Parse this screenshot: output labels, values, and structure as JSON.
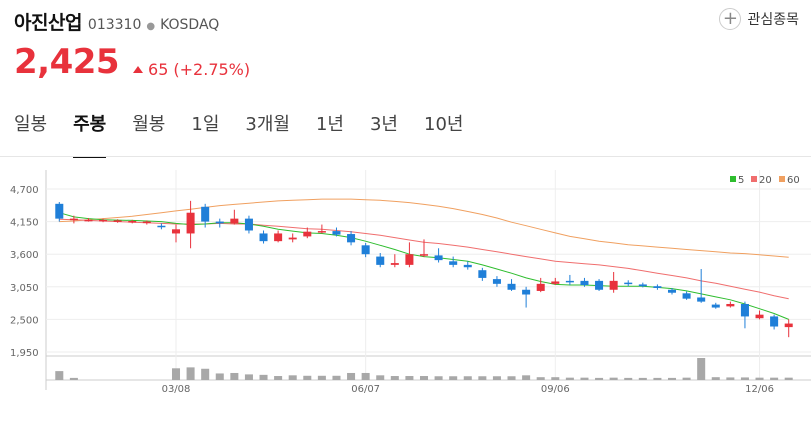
{
  "stock": {
    "name": "아진산업",
    "code": "013310",
    "market": "KOSDAQ",
    "price": "2,425",
    "change_value": "65",
    "change_pct": "(+2.75%)"
  },
  "favorite": {
    "label": "관심종목",
    "icon": "plus-icon"
  },
  "tabs": [
    "일봉",
    "주봉",
    "월봉",
    "1일",
    "3개월",
    "1년",
    "3년",
    "10년"
  ],
  "active_tab": 1,
  "colors": {
    "up": "#e8323c",
    "down": "#1f7fd8",
    "ma5": "#2ebd2e",
    "ma20": "#f06e6e",
    "ma60": "#f0a060"
  },
  "chart_data": {
    "type": "candlestick",
    "y_ticks": [
      "4,700",
      "4,150",
      "3,600",
      "3,050",
      "2,500",
      "1,950"
    ],
    "ylim": [
      1950,
      4700
    ],
    "x_tick_labels": [
      {
        "index": 8,
        "label": "03/08"
      },
      {
        "index": 21,
        "label": "06/07"
      },
      {
        "index": 34,
        "label": "09/06"
      },
      {
        "index": 48,
        "label": "12/06"
      }
    ],
    "legend": [
      "5",
      "20",
      "60"
    ],
    "candles": [
      [
        4450,
        4200,
        4480,
        4150
      ],
      [
        4180,
        4200,
        4250,
        4120
      ],
      [
        4180,
        4180,
        4210,
        4150
      ],
      [
        4170,
        4180,
        4200,
        4140
      ],
      [
        4160,
        4170,
        4190,
        4130
      ],
      [
        4150,
        4160,
        4180,
        4120
      ],
      [
        4140,
        4150,
        4170,
        4100
      ],
      [
        4080,
        4060,
        4120,
        4020
      ],
      [
        3950,
        4020,
        4100,
        3800
      ],
      [
        3950,
        4300,
        4500,
        3700
      ],
      [
        4400,
        4150,
        4450,
        4050
      ],
      [
        4150,
        4120,
        4200,
        4050
      ],
      [
        4120,
        4200,
        4350,
        4100
      ],
      [
        4200,
        4000,
        4250,
        3950
      ],
      [
        3950,
        3820,
        4000,
        3780
      ],
      [
        3820,
        3950,
        4000,
        3800
      ],
      [
        3850,
        3880,
        3950,
        3800
      ],
      [
        3900,
        3980,
        4050,
        3870
      ],
      [
        3980,
        3990,
        4100,
        3950
      ],
      [
        3990,
        3930,
        4050,
        3900
      ],
      [
        3940,
        3800,
        3990,
        3750
      ],
      [
        3750,
        3600,
        3790,
        3550
      ],
      [
        3560,
        3420,
        3620,
        3380
      ],
      [
        3420,
        3450,
        3600,
        3380
      ],
      [
        3420,
        3600,
        3800,
        3380
      ],
      [
        3600,
        3600,
        3850,
        3550
      ],
      [
        3580,
        3500,
        3700,
        3460
      ],
      [
        3480,
        3420,
        3560,
        3380
      ],
      [
        3420,
        3380,
        3480,
        3340
      ],
      [
        3330,
        3200,
        3370,
        3150
      ],
      [
        3180,
        3100,
        3230,
        3050
      ],
      [
        3100,
        3000,
        3180,
        2980
      ],
      [
        3000,
        2920,
        3050,
        2700
      ],
      [
        2980,
        3100,
        3200,
        2960
      ],
      [
        3100,
        3140,
        3200,
        3080
      ],
      [
        3150,
        3130,
        3250,
        3080
      ],
      [
        3150,
        3080,
        3200,
        3050
      ],
      [
        3150,
        3000,
        3180,
        2980
      ],
      [
        3000,
        3150,
        3300,
        2950
      ],
      [
        3120,
        3100,
        3160,
        3060
      ],
      [
        3090,
        3060,
        3120,
        3040
      ],
      [
        3060,
        3030,
        3090,
        3000
      ],
      [
        3000,
        2950,
        3030,
        2920
      ],
      [
        2940,
        2850,
        2970,
        2830
      ],
      [
        2870,
        2800,
        3350,
        2780
      ],
      [
        2750,
        2700,
        2780,
        2680
      ],
      [
        2720,
        2760,
        2800,
        2700
      ],
      [
        2760,
        2550,
        2800,
        2350
      ],
      [
        2520,
        2580,
        2650,
        2500
      ],
      [
        2550,
        2380,
        2580,
        2330
      ],
      [
        2370,
        2430,
        2500,
        2200
      ]
    ],
    "volumes": [
      1.9,
      0.45,
      0,
      0,
      0,
      0,
      0,
      0,
      2.5,
      2.7,
      2.4,
      1.4,
      1.5,
      1.2,
      1.1,
      0.85,
      1.0,
      0.9,
      0.9,
      0.9,
      1.5,
      1.5,
      1.0,
      0.85,
      0.85,
      0.85,
      0.8,
      0.8,
      0.8,
      0.8,
      0.8,
      0.8,
      1.0,
      0.6,
      0.6,
      0.5,
      0.5,
      0.45,
      0.5,
      0.45,
      0.45,
      0.45,
      0.45,
      0.5,
      4.7,
      0.6,
      0.55,
      0.55,
      0.5,
      0.5,
      0.5
    ],
    "ma5": [
      4300,
      4230,
      4200,
      4180,
      4175,
      4170,
      4160,
      4150,
      4120,
      4100,
      4110,
      4130,
      4130,
      4110,
      4070,
      4020,
      3990,
      3960,
      3950,
      3920,
      3880,
      3820,
      3750,
      3680,
      3600,
      3560,
      3540,
      3510,
      3480,
      3420,
      3350,
      3280,
      3200,
      3140,
      3090,
      3080,
      3080,
      3070,
      3060,
      3060,
      3060,
      3040,
      3020,
      2980,
      2930,
      2880,
      2830,
      2760,
      2680,
      2600,
      2500
    ],
    "ma20": [
      4190,
      4180,
      4170,
      4160,
      4150,
      4140,
      4130,
      4120,
      4110,
      4110,
      4110,
      4120,
      4110,
      4110,
      4090,
      4070,
      4050,
      4030,
      4020,
      4000,
      3980,
      3950,
      3920,
      3880,
      3840,
      3800,
      3780,
      3750,
      3720,
      3680,
      3640,
      3600,
      3560,
      3520,
      3480,
      3460,
      3440,
      3420,
      3390,
      3360,
      3320,
      3280,
      3240,
      3200,
      3150,
      3110,
      3060,
      3010,
      2960,
      2900,
      2850
    ],
    "ma60": [
      4150,
      4160,
      4180,
      4200,
      4220,
      4240,
      4270,
      4300,
      4330,
      4360,
      4390,
      4420,
      4440,
      4460,
      4480,
      4500,
      4510,
      4520,
      4530,
      4530,
      4530,
      4520,
      4510,
      4490,
      4470,
      4440,
      4410,
      4370,
      4320,
      4270,
      4210,
      4140,
      4080,
      4020,
      3960,
      3900,
      3860,
      3820,
      3790,
      3760,
      3740,
      3720,
      3700,
      3680,
      3660,
      3640,
      3620,
      3610,
      3590,
      3570,
      3550
    ]
  }
}
